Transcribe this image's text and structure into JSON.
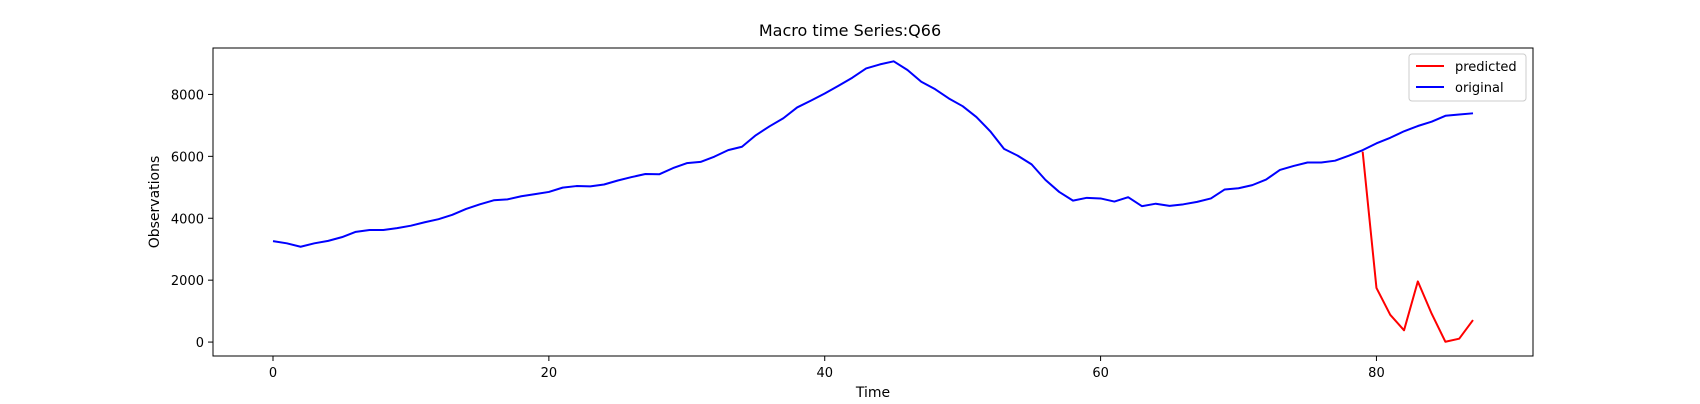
{
  "chart_data": {
    "type": "line",
    "title": "Macro time Series:Q66",
    "xlabel": "Time",
    "ylabel": "Observations",
    "xlim": [
      -4.35,
      91.35
    ],
    "ylim": [
      -450,
      9500
    ],
    "xticks": [
      0,
      20,
      40,
      60,
      80
    ],
    "yticks": [
      0,
      2000,
      4000,
      6000,
      8000
    ],
    "xtick_labels": [
      "0",
      "20",
      "40",
      "60",
      "80"
    ],
    "ytick_labels": [
      "0",
      "2000",
      "4000",
      "6000",
      "8000"
    ],
    "grid": false,
    "legend_position": "top-right",
    "series": [
      {
        "name": "predicted",
        "color": "#ff0000",
        "x": [
          79,
          80,
          81,
          82,
          83,
          84,
          85,
          86,
          87
        ],
        "y": [
          6150,
          1750,
          880,
          380,
          1960,
          920,
          10,
          110,
          710
        ]
      },
      {
        "name": "original",
        "color": "#0000ff",
        "x": [
          0,
          1,
          2,
          3,
          4,
          5,
          6,
          7,
          8,
          9,
          10,
          11,
          12,
          13,
          14,
          15,
          16,
          17,
          18,
          19,
          20,
          21,
          22,
          23,
          24,
          25,
          26,
          27,
          28,
          29,
          30,
          31,
          32,
          33,
          34,
          35,
          36,
          37,
          38,
          39,
          40,
          41,
          42,
          43,
          44,
          45,
          46,
          47,
          48,
          49,
          50,
          51,
          52,
          53,
          54,
          55,
          56,
          57,
          58,
          59,
          60,
          61,
          62,
          63,
          64,
          65,
          66,
          67,
          68,
          69,
          70,
          71,
          72,
          73,
          74,
          75,
          76,
          77,
          78,
          79,
          80,
          81,
          82,
          83,
          84,
          85,
          86,
          87
        ],
        "y": [
          3260,
          3190,
          3080,
          3190,
          3270,
          3390,
          3560,
          3620,
          3620,
          3680,
          3760,
          3870,
          3970,
          4110,
          4300,
          4450,
          4580,
          4610,
          4710,
          4780,
          4850,
          4990,
          5040,
          5030,
          5090,
          5220,
          5330,
          5430,
          5420,
          5620,
          5780,
          5820,
          5990,
          6200,
          6310,
          6680,
          6970,
          7230,
          7580,
          7800,
          8030,
          8280,
          8540,
          8840,
          8970,
          9070,
          8790,
          8410,
          8170,
          7870,
          7620,
          7270,
          6810,
          6240,
          6020,
          5740,
          5240,
          4850,
          4570,
          4660,
          4640,
          4540,
          4680,
          4390,
          4470,
          4400,
          4450,
          4530,
          4640,
          4930,
          4970,
          5070,
          5250,
          5560,
          5690,
          5800,
          5800,
          5860,
          6020,
          6200,
          6420,
          6600,
          6810,
          6980,
          7120,
          7310,
          7350,
          7390
        ]
      }
    ]
  }
}
